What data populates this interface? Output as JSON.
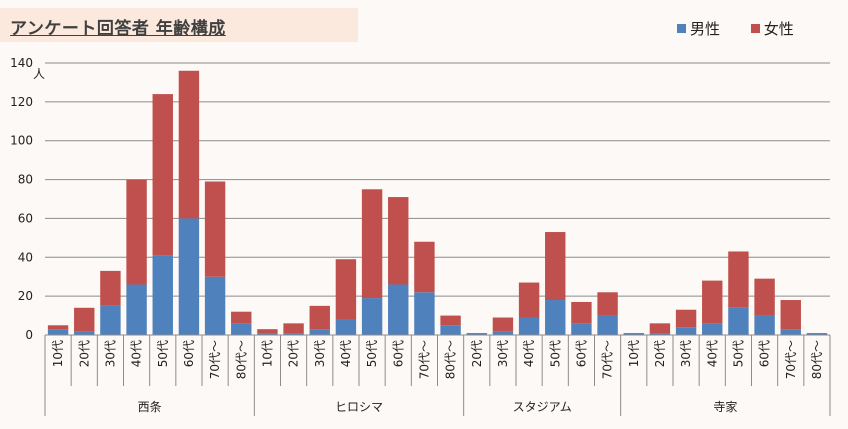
{
  "title": "アンケート回答者 年齢構成",
  "legend": [
    {
      "name": "男性",
      "color": "#4f81bd"
    },
    {
      "name": "女性",
      "color": "#c0504d"
    }
  ],
  "chart_data": {
    "type": "bar",
    "stacked": true,
    "ylabel": "人",
    "ylim": [
      0,
      140
    ],
    "yticks": [
      0,
      20,
      40,
      60,
      80,
      100,
      120,
      140
    ],
    "grid": true,
    "legend_position": "top-right",
    "groups": [
      {
        "name": "西条",
        "categories": [
          "10代",
          "20代",
          "30代",
          "40代",
          "50代",
          "60代",
          "70代～",
          "80代～"
        ]
      },
      {
        "name": "ヒロシマ",
        "categories": [
          "10代",
          "20代",
          "30代",
          "40代",
          "50代",
          "60代",
          "70代～",
          "80代～"
        ]
      },
      {
        "name": "スタジアム",
        "categories": [
          "20代",
          "30代",
          "40代",
          "50代",
          "60代",
          "70代～"
        ]
      },
      {
        "name": "寺家",
        "categories": [
          "10代",
          "20代",
          "30代",
          "40代",
          "50代",
          "60代",
          "70代～",
          "80代～"
        ]
      }
    ],
    "series": [
      {
        "name": "男性",
        "color": "#4f81bd",
        "values": [
          3,
          2,
          15,
          26,
          41,
          60,
          30,
          6,
          1,
          1,
          3,
          8,
          19,
          26,
          22,
          5,
          1,
          2,
          9,
          18,
          6,
          10,
          1,
          1,
          4,
          6,
          14,
          10,
          3,
          1
        ]
      },
      {
        "name": "女性",
        "color": "#c0504d",
        "values": [
          2,
          12,
          18,
          54,
          83,
          76,
          49,
          6,
          2,
          5,
          12,
          31,
          56,
          45,
          26,
          5,
          0,
          7,
          18,
          35,
          11,
          12,
          0,
          5,
          9,
          22,
          29,
          19,
          15,
          0
        ]
      }
    ]
  }
}
